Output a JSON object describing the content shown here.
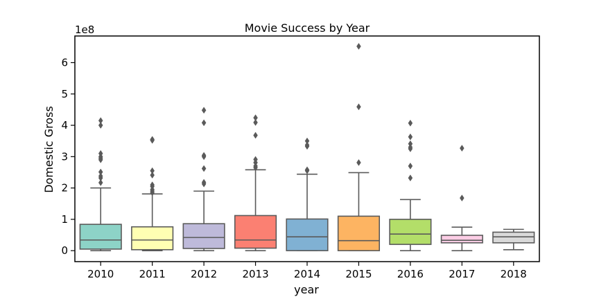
{
  "chart_data": {
    "type": "box",
    "title": "Movie Success by Year",
    "xlabel": "year",
    "ylabel": "Domestic Gross",
    "y_offset_label": "1e8",
    "ylim": [
      -35000000,
      685000000
    ],
    "yticks": [
      0,
      100000000,
      200000000,
      300000000,
      400000000,
      500000000,
      600000000
    ],
    "ytick_labels": [
      "0",
      "1",
      "2",
      "3",
      "4",
      "5",
      "6"
    ],
    "grid": false,
    "categories": [
      "2010",
      "2011",
      "2012",
      "2013",
      "2014",
      "2015",
      "2016",
      "2017",
      "2018"
    ],
    "boxes": [
      {
        "year": "2010",
        "color": "#8dd3c7",
        "whisker_low": 0,
        "q1": 5000000,
        "median": 34000000,
        "q3": 84000000,
        "whisker_high": 200000000,
        "outliers": [
          217000000,
          232000000,
          238000000,
          251000000,
          290000000,
          295000000,
          300000000,
          310000000,
          400000000,
          415000000
        ]
      },
      {
        "year": "2011",
        "color": "#ffffb3",
        "whisker_low": 0,
        "q1": 3000000,
        "median": 34000000,
        "q3": 76000000,
        "whisker_high": 181000000,
        "outliers": [
          185000000,
          190000000,
          195000000,
          205000000,
          210000000,
          241000000,
          255000000,
          352000000,
          355000000
        ]
      },
      {
        "year": "2012",
        "color": "#bebada",
        "whisker_low": 0,
        "q1": 7000000,
        "median": 42000000,
        "q3": 86000000,
        "whisker_high": 190000000,
        "outliers": [
          213000000,
          218000000,
          262000000,
          300000000,
          304000000,
          408000000,
          448000000
        ]
      },
      {
        "year": "2013",
        "color": "#fb8072",
        "whisker_low": 0,
        "q1": 8000000,
        "median": 34000000,
        "q3": 112000000,
        "whisker_high": 258000000,
        "outliers": [
          265000000,
          270000000,
          281000000,
          291000000,
          368000000,
          409000000,
          424000000
        ]
      },
      {
        "year": "2014",
        "color": "#80b1d3",
        "whisker_low": 0,
        "q1": 0,
        "median": 44000000,
        "q3": 101000000,
        "whisker_high": 244000000,
        "outliers": [
          255000000,
          258000000,
          333000000,
          337000000,
          350000000
        ]
      },
      {
        "year": "2015",
        "color": "#fdb462",
        "whisker_low": 0,
        "q1": 0,
        "median": 32000000,
        "q3": 110000000,
        "whisker_high": 249000000,
        "outliers": [
          281000000,
          459000000,
          652000000
        ]
      },
      {
        "year": "2016",
        "color": "#b3de69",
        "whisker_low": 0,
        "q1": 20000000,
        "median": 53000000,
        "q3": 100000000,
        "whisker_high": 163000000,
        "outliers": [
          232000000,
          270000000,
          325000000,
          330000000,
          341000000,
          363000000,
          407000000
        ]
      },
      {
        "year": "2017",
        "color": "#fccde5",
        "whisker_low": 0,
        "q1": 25000000,
        "median": 33000000,
        "q3": 49000000,
        "whisker_high": 75000000,
        "outliers": [
          168000000,
          327000000
        ]
      },
      {
        "year": "2018",
        "color": "#d9d9d9",
        "whisker_low": 3000000,
        "q1": 25000000,
        "median": 44000000,
        "q3": 59000000,
        "whisker_high": 68000000,
        "outliers": []
      }
    ]
  }
}
